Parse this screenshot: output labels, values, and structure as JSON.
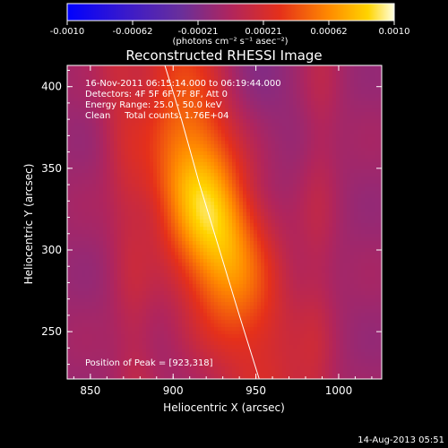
{
  "chart_data": {
    "type": "heatmap",
    "title": "Reconstructed RHESSI Image",
    "xlabel": "Heliocentric X (arcsec)",
    "ylabel": "Heliocentric Y (arcsec)",
    "xlim": [
      836,
      1026
    ],
    "ylim": [
      221,
      413
    ],
    "x_ticks": [
      850,
      900,
      950,
      1000
    ],
    "y_ticks": [
      250,
      300,
      350,
      400
    ],
    "colorbar": {
      "ticks": [
        "-0.0010",
        "-0.00062",
        "-0.00021",
        "0.00021",
        "0.00062",
        "0.0010"
      ],
      "range": [
        -0.001,
        0.001
      ],
      "unit_label": "(photons cm⁻² s⁻¹ asec⁻²)"
    },
    "info_lines": [
      "16-Nov-2011 06:15:14.000 to 06:19:44.000",
      "Detectors: 4F 5F 6F 7F 8F, Att 0",
      "Energy Range: 25.0 - 50.0 keV",
      "Clean     Total counts: 1.76E+04"
    ],
    "peak_label": "Position of Peak = [923,318]",
    "peak": [
      923,
      318
    ],
    "limb_curve": [
      [
        895,
        413
      ],
      [
        905,
        380
      ],
      [
        916,
        340
      ],
      [
        928,
        300
      ],
      [
        940,
        260
      ],
      [
        952,
        221
      ]
    ],
    "ridges": [
      {
        "name": "main",
        "amplitude": 0.001,
        "x_at_y": [
          [
            905,
            413
          ],
          [
            918,
            340
          ],
          [
            934,
            280
          ],
          [
            950,
            221
          ]
        ],
        "width": 22
      },
      {
        "name": "left",
        "amplitude": 0.00015,
        "x_at_y": [
          [
            866,
            413
          ],
          [
            872,
            340
          ],
          [
            878,
            221
          ]
        ],
        "width": 9
      },
      {
        "name": "right",
        "amplitude": 0.00012,
        "x_at_y": [
          [
            990,
            413
          ],
          [
            988,
            340
          ],
          [
            986,
            221
          ]
        ],
        "width": 8
      }
    ]
  },
  "footer": {
    "date": "14-Aug-2013 05:51"
  }
}
